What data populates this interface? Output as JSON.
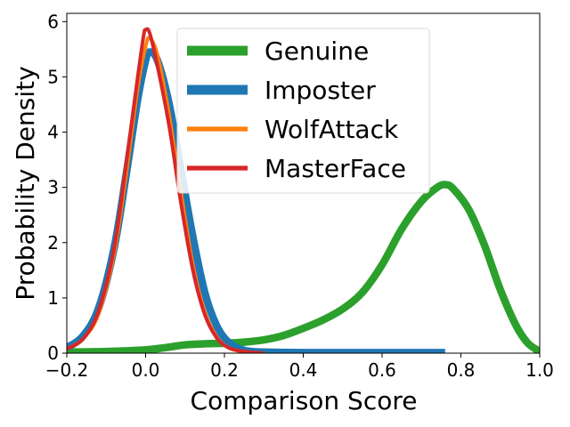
{
  "chart_data": {
    "type": "line",
    "title": "",
    "xlabel": "Comparison Score",
    "ylabel": "Probability Density",
    "xlim": [
      -0.2,
      1.0
    ],
    "ylim": [
      0,
      6.15
    ],
    "xticks": [
      -0.2,
      0.0,
      0.2,
      0.4,
      0.6,
      0.8,
      1.0
    ],
    "xtick_labels": [
      "−0.2",
      "0.0",
      "0.2",
      "0.4",
      "0.6",
      "0.8",
      "1.0"
    ],
    "yticks": [
      0,
      1,
      2,
      3,
      4,
      5,
      6
    ],
    "ytick_labels": [
      "0",
      "1",
      "2",
      "3",
      "4",
      "5",
      "6"
    ],
    "grid": false,
    "legend_position": "top-center",
    "series": [
      {
        "name": "Genuine",
        "color": "#2ca02c",
        "linewidth": "thick",
        "points": [
          [
            -0.2,
            0.02
          ],
          [
            -0.1,
            0.03
          ],
          [
            0.0,
            0.06
          ],
          [
            0.05,
            0.1
          ],
          [
            0.1,
            0.15
          ],
          [
            0.15,
            0.17
          ],
          [
            0.2,
            0.18
          ],
          [
            0.25,
            0.2
          ],
          [
            0.3,
            0.24
          ],
          [
            0.35,
            0.32
          ],
          [
            0.4,
            0.45
          ],
          [
            0.45,
            0.6
          ],
          [
            0.5,
            0.8
          ],
          [
            0.55,
            1.1
          ],
          [
            0.6,
            1.6
          ],
          [
            0.65,
            2.25
          ],
          [
            0.7,
            2.75
          ],
          [
            0.74,
            3.0
          ],
          [
            0.76,
            3.05
          ],
          [
            0.78,
            2.98
          ],
          [
            0.82,
            2.6
          ],
          [
            0.86,
            1.95
          ],
          [
            0.9,
            1.15
          ],
          [
            0.94,
            0.5
          ],
          [
            0.97,
            0.18
          ],
          [
            1.0,
            0.03
          ]
        ]
      },
      {
        "name": "Imposter",
        "color": "#1f77b4",
        "linewidth": "thick",
        "points": [
          [
            -0.2,
            0.1
          ],
          [
            -0.16,
            0.3
          ],
          [
            -0.12,
            0.8
          ],
          [
            -0.08,
            1.9
          ],
          [
            -0.05,
            3.2
          ],
          [
            -0.02,
            4.6
          ],
          [
            0.0,
            5.3
          ],
          [
            0.01,
            5.45
          ],
          [
            0.03,
            5.3
          ],
          [
            0.06,
            4.5
          ],
          [
            0.09,
            3.3
          ],
          [
            0.12,
            2.1
          ],
          [
            0.15,
            1.1
          ],
          [
            0.18,
            0.5
          ],
          [
            0.21,
            0.2
          ],
          [
            0.25,
            0.05
          ],
          [
            0.3,
            0.02
          ],
          [
            0.4,
            0.01
          ],
          [
            0.5,
            0.01
          ],
          [
            0.6,
            0.01
          ],
          [
            0.7,
            0.01
          ],
          [
            0.76,
            0.01
          ]
        ]
      },
      {
        "name": "WolfAttack",
        "color": "#ff7f0e",
        "linewidth": "normal",
        "points": [
          [
            -0.2,
            0.08
          ],
          [
            -0.16,
            0.25
          ],
          [
            -0.12,
            0.7
          ],
          [
            -0.08,
            1.8
          ],
          [
            -0.05,
            3.2
          ],
          [
            -0.02,
            4.8
          ],
          [
            0.0,
            5.55
          ],
          [
            0.01,
            5.7
          ],
          [
            0.03,
            5.4
          ],
          [
            0.06,
            4.3
          ],
          [
            0.09,
            2.9
          ],
          [
            0.12,
            1.6
          ],
          [
            0.15,
            0.75
          ],
          [
            0.18,
            0.3
          ],
          [
            0.21,
            0.1
          ],
          [
            0.25,
            0.02
          ],
          [
            0.3,
            0.0
          ]
        ]
      },
      {
        "name": "MasterFace",
        "color": "#d62728",
        "linewidth": "normal",
        "points": [
          [
            -0.2,
            0.08
          ],
          [
            -0.16,
            0.25
          ],
          [
            -0.12,
            0.75
          ],
          [
            -0.08,
            1.9
          ],
          [
            -0.05,
            3.4
          ],
          [
            -0.02,
            5.0
          ],
          [
            -0.005,
            5.75
          ],
          [
            0.0,
            5.85
          ],
          [
            0.01,
            5.8
          ],
          [
            0.03,
            5.2
          ],
          [
            0.06,
            4.1
          ],
          [
            0.09,
            2.7
          ],
          [
            0.12,
            1.5
          ],
          [
            0.15,
            0.7
          ],
          [
            0.18,
            0.28
          ],
          [
            0.21,
            0.1
          ],
          [
            0.25,
            0.03
          ],
          [
            0.3,
            0.0
          ]
        ]
      }
    ]
  }
}
